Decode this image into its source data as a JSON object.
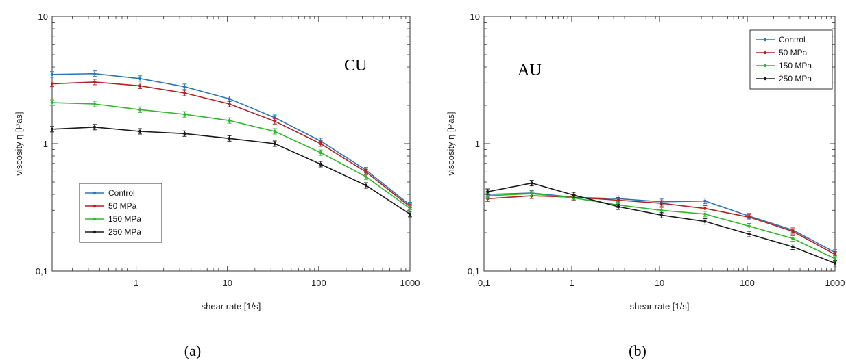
{
  "colors": {
    "control": "#2e75b6",
    "mpa50": "#b22222",
    "mpa150": "#2fb82f",
    "mpa250": "#1a1a1a"
  },
  "chart_data": [
    {
      "type": "line",
      "panel_label": "(a)",
      "annotation": "CU",
      "xlabel": "shear rate [1/s]",
      "ylabel": "viscosity η [Pas]",
      "x_scale": "log",
      "y_scale": "log",
      "xlim": [
        0.12,
        1000
      ],
      "ylim": [
        0.1,
        10
      ],
      "x_ticks": [
        1,
        10,
        100,
        1000
      ],
      "x_tick_labels": [
        "1",
        "10",
        "100",
        "1000"
      ],
      "y_ticks": [
        0.1,
        1,
        10
      ],
      "y_tick_labels": [
        "0,1",
        "1",
        "10"
      ],
      "legend_position": "lower-left",
      "x": [
        0.12,
        0.35,
        1.1,
        3.4,
        10.5,
        33,
        105,
        330,
        1000
      ],
      "series": [
        {
          "name": "Control",
          "color_key": "control",
          "values": [
            3.5,
            3.55,
            3.25,
            2.8,
            2.25,
            1.6,
            1.05,
            0.62,
            0.33
          ]
        },
        {
          "name": "50 MPa",
          "color_key": "mpa50",
          "values": [
            2.95,
            3.05,
            2.85,
            2.5,
            2.05,
            1.5,
            1.0,
            0.6,
            0.32
          ]
        },
        {
          "name": "150 MPa",
          "color_key": "mpa150",
          "values": [
            2.1,
            2.05,
            1.85,
            1.7,
            1.52,
            1.25,
            0.85,
            0.55,
            0.31
          ]
        },
        {
          "name": "250 MPa",
          "color_key": "mpa250",
          "values": [
            1.3,
            1.35,
            1.25,
            1.2,
            1.1,
            1.0,
            0.69,
            0.47,
            0.28
          ]
        }
      ]
    },
    {
      "type": "line",
      "panel_label": "(b)",
      "annotation": "AU",
      "xlabel": "shear rate [1/s]",
      "ylabel": "viscosity η [Pas]",
      "x_scale": "log",
      "y_scale": "log",
      "xlim": [
        0.1,
        1000
      ],
      "ylim": [
        0.1,
        10
      ],
      "x_ticks": [
        0.1,
        1,
        10,
        100,
        1000
      ],
      "x_tick_labels": [
        "0,1",
        "1",
        "10",
        "100",
        "1000"
      ],
      "y_ticks": [
        0.1,
        1,
        10
      ],
      "y_tick_labels": [
        "0,1",
        "1",
        "10"
      ],
      "legend_position": "top-right",
      "x": [
        0.11,
        0.35,
        1.05,
        3.4,
        10.5,
        33,
        105,
        330,
        1000
      ],
      "series": [
        {
          "name": "Control",
          "color_key": "control",
          "values": [
            0.4,
            0.41,
            0.38,
            0.37,
            0.35,
            0.355,
            0.27,
            0.21,
            0.14
          ]
        },
        {
          "name": "50 MPa",
          "color_key": "mpa50",
          "values": [
            0.37,
            0.39,
            0.38,
            0.36,
            0.34,
            0.31,
            0.265,
            0.205,
            0.135
          ]
        },
        {
          "name": "150 MPa",
          "color_key": "mpa150",
          "values": [
            0.39,
            0.405,
            0.375,
            0.33,
            0.3,
            0.28,
            0.225,
            0.18,
            0.125
          ]
        },
        {
          "name": "250 MPa",
          "color_key": "mpa250",
          "values": [
            0.42,
            0.49,
            0.395,
            0.32,
            0.275,
            0.245,
            0.195,
            0.155,
            0.115
          ]
        }
      ]
    }
  ]
}
